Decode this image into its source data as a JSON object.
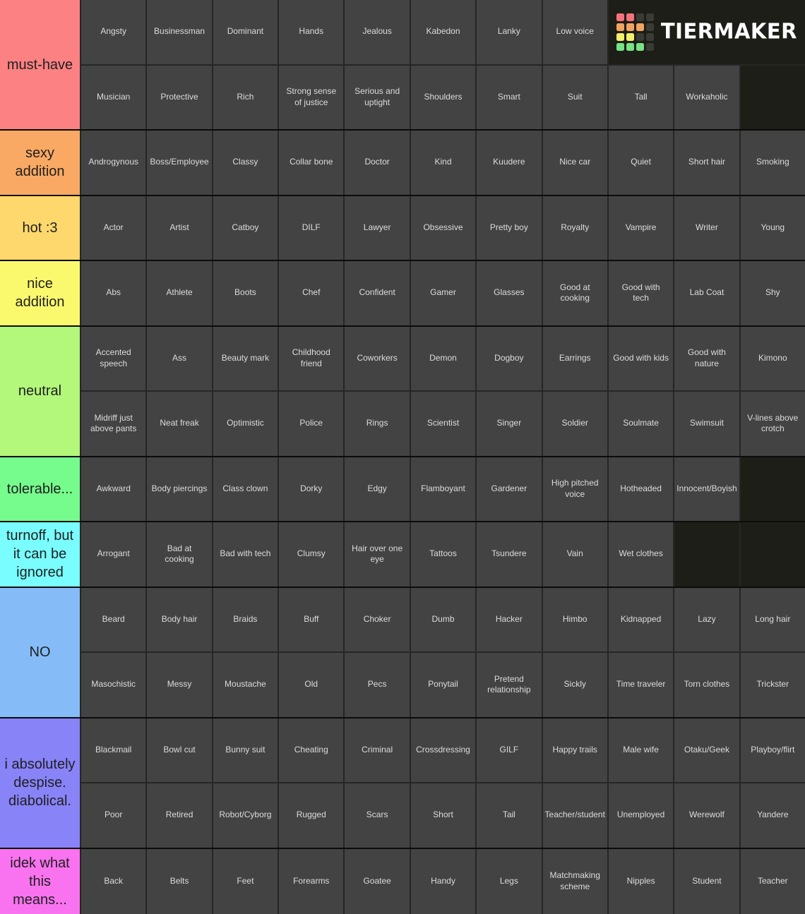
{
  "logo": {
    "text": "TIERMAKER",
    "background": "#1d1d17",
    "grid_colors": [
      [
        "#f4737b",
        "#f4737b",
        "#3b3b36",
        "#3b3b36"
      ],
      [
        "#f2a35f",
        "#f2a35f",
        "#f2a35f",
        "#3b3b36"
      ],
      [
        "#f5ef69",
        "#f5ef69",
        "#3b3b36",
        "#3b3b36"
      ],
      [
        "#77e385",
        "#77e385",
        "#77e385",
        "#3b3b36"
      ]
    ]
  },
  "colors": {
    "cell_background": "#434343",
    "cell_text": "#dcdcdc",
    "label_text": "#1f1f1f",
    "seam": "#262626",
    "tier_separator": "#0b0b0b",
    "empty_background": "#1e1e18"
  },
  "tiers": [
    {
      "label": "must-have",
      "color": "#fb8183",
      "logo_after_first_row": true,
      "rows": [
        [
          "Angsty",
          "Businessman",
          "Dominant",
          "Hands",
          "Jealous",
          "Kabedon",
          "Lanky",
          "Low voice"
        ],
        [
          "Musician",
          "Protective",
          "Rich",
          "Strong sense of justice",
          "Serious and uptight",
          "Shoulders",
          "Smart",
          "Suit",
          "Tall",
          "Workaholic"
        ]
      ]
    },
    {
      "label": "sexy addition",
      "color": "#f9a963",
      "rows": [
        [
          "Androgynous",
          "Boss/Employee",
          "Classy",
          "Collar bone",
          "Doctor",
          "Kind",
          "Kuudere",
          "Nice car",
          "Quiet",
          "Short hair",
          "Smoking"
        ]
      ]
    },
    {
      "label": "hot :3",
      "color": "#fed86d",
      "rows": [
        [
          "Actor",
          "Artist",
          "Catboy",
          "DILF",
          "Lawyer",
          "Obsessive",
          "Pretty boy",
          "Royalty",
          "Vampire",
          "Writer",
          "Young"
        ]
      ]
    },
    {
      "label": "nice addition",
      "color": "#faf96e",
      "rows": [
        [
          "Abs",
          "Athlete",
          "Boots",
          "Chef",
          "Confident",
          "Gamer",
          "Glasses",
          "Good at cooking",
          "Good with tech",
          "Lab Coat",
          "Shy"
        ]
      ]
    },
    {
      "label": "neutral",
      "color": "#b3f77b",
      "rows": [
        [
          "Accented speech",
          "Ass",
          "Beauty mark",
          "Childhood friend",
          "Coworkers",
          "Demon",
          "Dogboy",
          "Earrings",
          "Good with kids",
          "Good with nature",
          "Kimono"
        ],
        [
          "Midriff just above pants",
          "Neat freak",
          "Optimistic",
          "Police",
          "Rings",
          "Scientist",
          "Singer",
          "Soldier",
          "Soulmate",
          "Swimsuit",
          "V-lines above crotch"
        ]
      ]
    },
    {
      "label": "tolerable...",
      "color": "#76fb8d",
      "rows": [
        [
          "Awkward",
          "Body piercings",
          "Class clown",
          "Dorky",
          "Edgy",
          "Flamboyant",
          "Gardener",
          "High pitched voice",
          "Hotheaded",
          "Innocent/Boyish"
        ]
      ]
    },
    {
      "label": "turnoff, but it can be ignored",
      "color": "#79fdfe",
      "rows": [
        [
          "Arrogant",
          "Bad at cooking",
          "Bad with tech",
          "Clumsy",
          "Hair over one eye",
          "Tattoos",
          "Tsundere",
          "Vain",
          "Wet clothes"
        ]
      ]
    },
    {
      "label": "NO",
      "color": "#85bcf8",
      "rows": [
        [
          "Beard",
          "Body hair",
          "Braids",
          "Buff",
          "Choker",
          "Dumb",
          "Hacker",
          "Himbo",
          "Kidnapped",
          "Lazy",
          "Long hair"
        ],
        [
          "Masochistic",
          "Messy",
          "Moustache",
          "Old",
          "Pecs",
          "Ponytail",
          "Pretend relationship",
          "Sickly",
          "Time traveler",
          "Torn clothes",
          "Trickster"
        ]
      ]
    },
    {
      "label": "i absolutely despise. diabolical.",
      "color": "#8883f7",
      "rows": [
        [
          "Blackmail",
          "Bowl cut",
          "Bunny suit",
          "Cheating",
          "Criminal",
          "Crossdressing",
          "GILF",
          "Happy trails",
          "Male wife",
          "Otaku/Geek",
          "Playboy/flirt"
        ],
        [
          "Poor",
          "Retired",
          "Robot/Cyborg",
          "Rugged",
          "Scars",
          "Short",
          "Tail",
          "Teacher/student",
          "Unemployed",
          "Werewolf",
          "Yandere"
        ]
      ]
    },
    {
      "label": "idek what this means...",
      "color": "#f973f0",
      "rows": [
        [
          "Back",
          "Belts",
          "Feet",
          "Forearms",
          "Goatee",
          "Handy",
          "Legs",
          "Matchmaking scheme",
          "Nipples",
          "Student",
          "Teacher"
        ]
      ]
    }
  ]
}
